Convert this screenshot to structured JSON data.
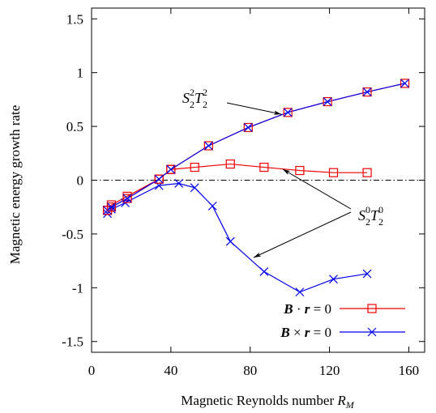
{
  "chart_data": {
    "type": "line",
    "xlabel": "Magnetic Reynolds number R_M",
    "xlabel_parts": {
      "text": "Magnetic Reynolds number ",
      "var": "R",
      "sub": "M"
    },
    "ylabel": "Magnetic energy growth rate",
    "xlim": [
      0,
      168
    ],
    "ylim": [
      -1.6,
      1.6
    ],
    "x_ticks": [
      0,
      40,
      80,
      120,
      160
    ],
    "x_tick_labels": [
      "0",
      "40",
      "80",
      "120",
      "160"
    ],
    "y_ticks": [
      1.5,
      1,
      0.5,
      0,
      -0.5,
      -1,
      -1.5
    ],
    "y_tick_labels": [
      "1.5",
      "1",
      "0.5",
      "0",
      "-0.5",
      "-1",
      "-1.5"
    ],
    "grid": false,
    "zero_line": {
      "y": 0,
      "style": "dash-dot"
    },
    "legend_position": "bottom-right",
    "series": [
      {
        "name": "B · r = 0",
        "legend": {
          "vec1": "B",
          "op": " · ",
          "vec2": "r",
          "rest": " = 0"
        },
        "color": "#ee0000",
        "marker": "square",
        "x": [
          8,
          10,
          18,
          34,
          40,
          52,
          70,
          87,
          105,
          122,
          139
        ],
        "y": [
          -0.28,
          -0.23,
          -0.15,
          0.01,
          0.1,
          0.12,
          0.15,
          0.12,
          0.09,
          0.07,
          0.07
        ]
      },
      {
        "name": "B × r = 0",
        "legend": {
          "vec1": "B",
          "op": " × ",
          "vec2": "r",
          "rest": " = 0"
        },
        "color": "#0000ee",
        "marker": "x",
        "x": [
          8,
          10,
          17,
          34,
          44,
          52,
          61,
          70,
          87,
          105,
          122,
          139
        ],
        "y": [
          -0.31,
          -0.27,
          -0.21,
          -0.05,
          -0.03,
          -0.07,
          -0.24,
          -0.57,
          -0.85,
          -1.04,
          -0.92,
          -0.87
        ]
      },
      {
        "name": "S22T22",
        "color": "#0000ee",
        "overlay_color": "#ee0000",
        "marker": "square-x",
        "x": [
          8,
          10,
          18,
          34,
          40,
          59,
          79,
          99,
          119,
          139,
          158
        ],
        "y": [
          -0.28,
          -0.25,
          -0.17,
          0.01,
          0.1,
          0.32,
          0.49,
          0.63,
          0.73,
          0.82,
          0.9
        ]
      }
    ],
    "annotations": [
      {
        "base": "S",
        "sub": "2",
        "sup": "2",
        "base2": "T",
        "sub2": "2",
        "sup2": "2"
      },
      {
        "base": "S",
        "sub": "2",
        "sup": "0",
        "base2": "T",
        "sub2": "2",
        "sup2": "0"
      }
    ]
  }
}
